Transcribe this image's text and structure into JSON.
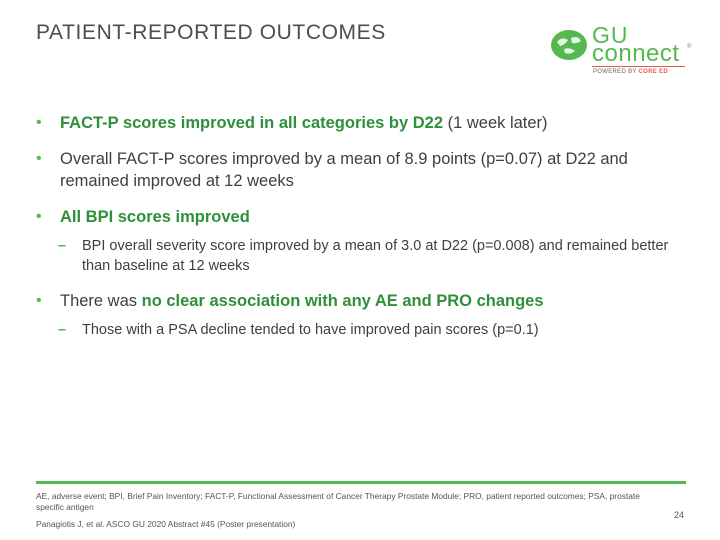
{
  "header": {
    "title": "PATIENT-REPORTED OUTCOMES",
    "logo": {
      "line1": "GU",
      "line2": "connect",
      "tm": "®",
      "powered": "POWERED BY ",
      "powered_brand": "CORE ED"
    }
  },
  "bullets": [
    {
      "part_bold": "FACT-P scores improved in all categories by D22",
      "part_rest": " (1 week later)"
    },
    {
      "text": "Overall FACT-P scores improved by a mean of 8.9 points (p=0.07) at D22 and remained improved at 12 weeks"
    },
    {
      "part_bold": "All BPI scores improved",
      "sub": "BPI overall severity score improved by a mean of 3.0 at D22 (p=0.008) and remained better than baseline at 12 weeks"
    },
    {
      "part_pre": "There was ",
      "part_bold": "no clear association with any AE and PRO changes",
      "sub": "Those with a PSA decline tended to have improved pain scores (p=0.1)"
    }
  ],
  "footer": {
    "abbreviations": "AE, adverse event; BPI, Brief Pain Inventory; FACT-P, Functional Assessment of Cancer Therapy Prostate Module; PRO, patient reported outcomes; PSA, prostate specific antigen",
    "citation": "Panagiotis J, et al. ASCO GU 2020 Abstract #45 (Poster presentation)",
    "page": "24"
  },
  "colors": {
    "accent_green": "#55b84f",
    "bold_green": "#2f8f3a",
    "logo_rule": "#e85a4f"
  },
  "icons": [
    "globe-logo-icon"
  ]
}
